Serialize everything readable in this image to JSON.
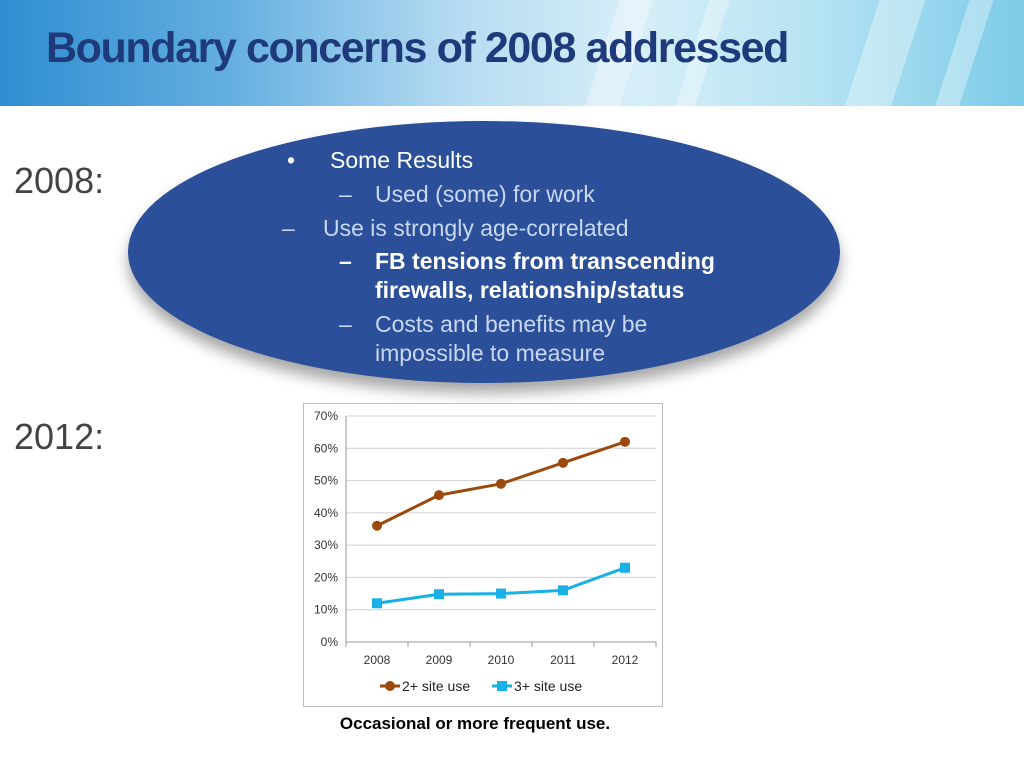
{
  "slide": {
    "title": "Boundary concerns of 2008 addressed",
    "label_2008": "2008:",
    "label_2012": "2012:",
    "caption": "Occasional or more frequent use."
  },
  "bullets": {
    "b1_marker": "•",
    "b1_text": "Some Results",
    "b2_marker": "–",
    "b2_text": "Used (some) for work",
    "b3_marker": "–",
    "b3_text": "Use  is strongly age-correlated",
    "b4_marker": "–",
    "b4_line1": "FB tensions from transcending",
    "b4_line2": "firewalls, relationship/status",
    "b5_marker": "–",
    "b5_line1": "Costs and benefits may be",
    "b5_line2": "impossible to measure"
  },
  "colors": {
    "ellipse": "#2b4f99",
    "title": "#1f3a7a",
    "series1": "#9c4a0c",
    "series2": "#18b0e6"
  },
  "chart_data": {
    "type": "line",
    "title": "",
    "xlabel": "",
    "ylabel": "",
    "categories": [
      "2008",
      "2009",
      "2010",
      "2011",
      "2012"
    ],
    "ylim": [
      0,
      70
    ],
    "yticks": [
      "0%",
      "10%",
      "20%",
      "30%",
      "40%",
      "50%",
      "60%",
      "70%"
    ],
    "grid": true,
    "legend_position": "bottom",
    "series": [
      {
        "name": "2+ site use",
        "values": [
          36,
          45.5,
          49,
          55.5,
          62
        ],
        "color": "#9c4a0c",
        "marker": "circle"
      },
      {
        "name": "3+ site use",
        "values": [
          12,
          14.8,
          15,
          16,
          23
        ],
        "color": "#18b0e6",
        "marker": "square"
      }
    ]
  }
}
